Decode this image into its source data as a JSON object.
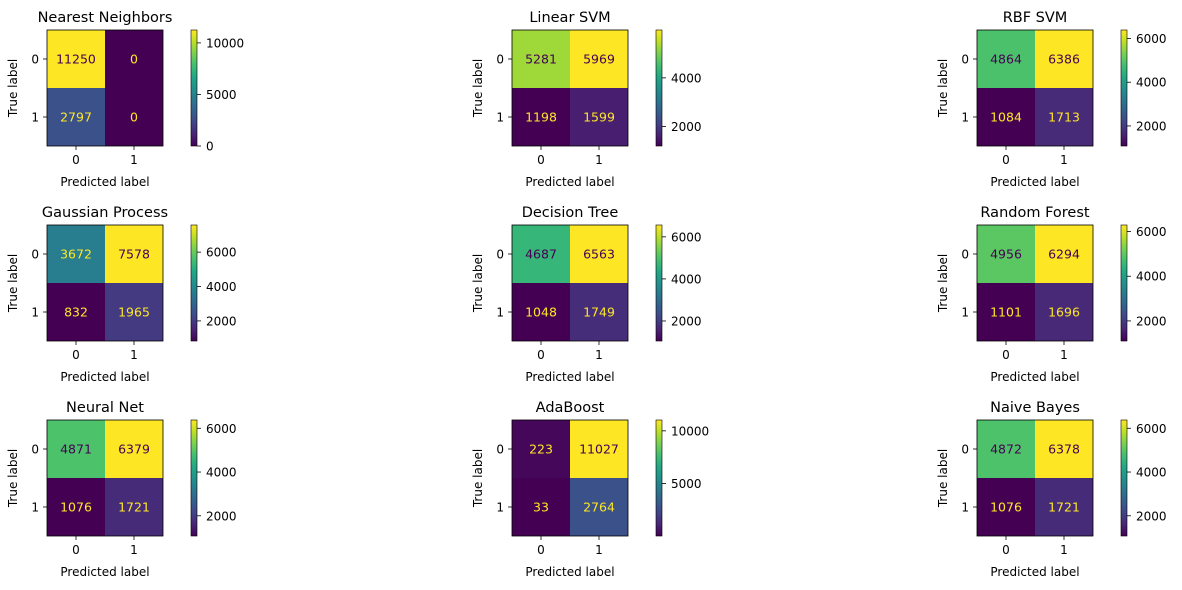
{
  "chart_data": [
    {
      "type": "heatmap",
      "title": "Nearest Neighbors",
      "xlabel": "Predicted label",
      "ylabel": "True label",
      "xticks": [
        "0",
        "1"
      ],
      "yticks": [
        "0",
        "1"
      ],
      "matrix": [
        [
          11250,
          0
        ],
        [
          2797,
          0
        ]
      ],
      "colorbar": {
        "min": 0,
        "max": 11250,
        "ticks": [
          0,
          5000,
          10000
        ]
      }
    },
    {
      "type": "heatmap",
      "title": "Linear SVM",
      "xlabel": "Predicted label",
      "ylabel": "True label",
      "xticks": [
        "0",
        "1"
      ],
      "yticks": [
        "0",
        "1"
      ],
      "matrix": [
        [
          5281,
          5969
        ],
        [
          1198,
          1599
        ]
      ],
      "colorbar": {
        "min": 1198,
        "max": 5969,
        "ticks": [
          2000,
          4000
        ]
      }
    },
    {
      "type": "heatmap",
      "title": "RBF SVM",
      "xlabel": "Predicted label",
      "ylabel": "True label",
      "xticks": [
        "0",
        "1"
      ],
      "yticks": [
        "0",
        "1"
      ],
      "matrix": [
        [
          4864,
          6386
        ],
        [
          1084,
          1713
        ]
      ],
      "colorbar": {
        "min": 1084,
        "max": 6386,
        "ticks": [
          2000,
          4000,
          6000
        ]
      }
    },
    {
      "type": "heatmap",
      "title": "Gaussian Process",
      "xlabel": "Predicted label",
      "ylabel": "True label",
      "xticks": [
        "0",
        "1"
      ],
      "yticks": [
        "0",
        "1"
      ],
      "matrix": [
        [
          3672,
          7578
        ],
        [
          832,
          1965
        ]
      ],
      "colorbar": {
        "min": 832,
        "max": 7578,
        "ticks": [
          2000,
          4000,
          6000
        ]
      }
    },
    {
      "type": "heatmap",
      "title": "Decision Tree",
      "xlabel": "Predicted label",
      "ylabel": "True label",
      "xticks": [
        "0",
        "1"
      ],
      "yticks": [
        "0",
        "1"
      ],
      "matrix": [
        [
          4687,
          6563
        ],
        [
          1048,
          1749
        ]
      ],
      "colorbar": {
        "min": 1048,
        "max": 6563,
        "ticks": [
          2000,
          4000,
          6000
        ]
      }
    },
    {
      "type": "heatmap",
      "title": "Random Forest",
      "xlabel": "Predicted label",
      "ylabel": "True label",
      "xticks": [
        "0",
        "1"
      ],
      "yticks": [
        "0",
        "1"
      ],
      "matrix": [
        [
          4956,
          6294
        ],
        [
          1101,
          1696
        ]
      ],
      "colorbar": {
        "min": 1101,
        "max": 6294,
        "ticks": [
          2000,
          4000,
          6000
        ]
      }
    },
    {
      "type": "heatmap",
      "title": "Neural Net",
      "xlabel": "Predicted label",
      "ylabel": "True label",
      "xticks": [
        "0",
        "1"
      ],
      "yticks": [
        "0",
        "1"
      ],
      "matrix": [
        [
          4871,
          6379
        ],
        [
          1076,
          1721
        ]
      ],
      "colorbar": {
        "min": 1076,
        "max": 6379,
        "ticks": [
          2000,
          4000,
          6000
        ]
      }
    },
    {
      "type": "heatmap",
      "title": "AdaBoost",
      "xlabel": "Predicted label",
      "ylabel": "True label",
      "xticks": [
        "0",
        "1"
      ],
      "yticks": [
        "0",
        "1"
      ],
      "matrix": [
        [
          223,
          11027
        ],
        [
          33,
          2764
        ]
      ],
      "colorbar": {
        "min": 33,
        "max": 11027,
        "ticks": [
          5000,
          10000
        ]
      }
    },
    {
      "type": "heatmap",
      "title": "Naive Bayes",
      "xlabel": "Predicted label",
      "ylabel": "True label",
      "xticks": [
        "0",
        "1"
      ],
      "yticks": [
        "0",
        "1"
      ],
      "matrix": [
        [
          4872,
          6378
        ],
        [
          1076,
          1721
        ]
      ],
      "colorbar": {
        "min": 1076,
        "max": 6378,
        "ticks": [
          2000,
          4000,
          6000
        ]
      }
    }
  ],
  "colormap": "viridis"
}
